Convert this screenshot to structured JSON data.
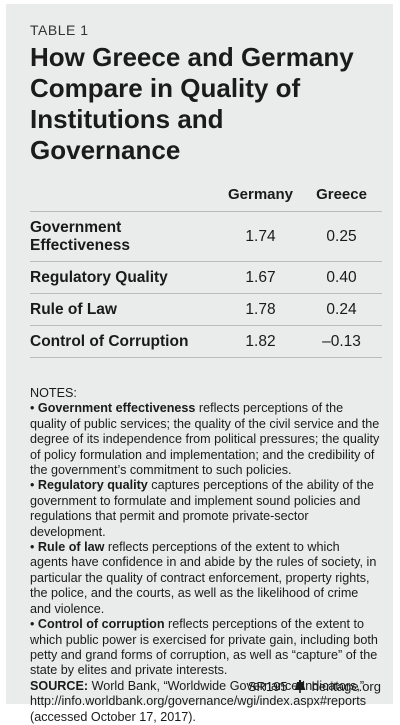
{
  "header": {
    "table_label": "TABLE 1",
    "title": "How Greece and Germany Compare in Quality of Institutions and Governance"
  },
  "table": {
    "columns": [
      "Germany",
      "Greece"
    ],
    "rows": [
      {
        "label": "Government Effectiveness",
        "germany": "1.74",
        "greece": "0.25"
      },
      {
        "label": "Regulatory Quality",
        "germany": "1.67",
        "greece": "0.40"
      },
      {
        "label": "Rule of Law",
        "germany": "1.78",
        "greece": "0.24"
      },
      {
        "label": "Control of Corruption",
        "germany": "1.82",
        "greece": "–0.13"
      }
    ]
  },
  "notes": {
    "heading": "NOTES:",
    "items": [
      {
        "term": "Government effectiveness",
        "text": " reflects perceptions of the quality of public services; the quality of the civil service and the degree of its independence from political pressures; the quality of policy formulation and implementation; and the credibility of the government’s commitment to such policies."
      },
      {
        "term": "Regulatory quality",
        "text": " captures perceptions of the ability of the government to formulate and implement sound policies and regulations that permit and promote private-sector development."
      },
      {
        "term": "Rule of law",
        "text": " reflects perceptions of the extent to which agents have confidence in and abide by the rules of society, in particular the quality of contract enforcement, property rights, the police, and the courts, as well as the likelihood of crime and violence."
      },
      {
        "term": "Control of corruption",
        "text": " reflects perceptions of the extent to which public power is exercised for private gain, including both petty and grand forms of corruption, as well as “capture” of the state by elites and private interests."
      }
    ],
    "source_label": "SOURCE:",
    "source_text": " World Bank, “Worldwide Governance Indicators,” http://info.worldbank.org/governance/wgi/index.aspx#reports (accessed October 17, 2017)."
  },
  "footer": {
    "code": "SR195",
    "icon": "liberty-bell-icon",
    "site": "heritage.org"
  }
}
